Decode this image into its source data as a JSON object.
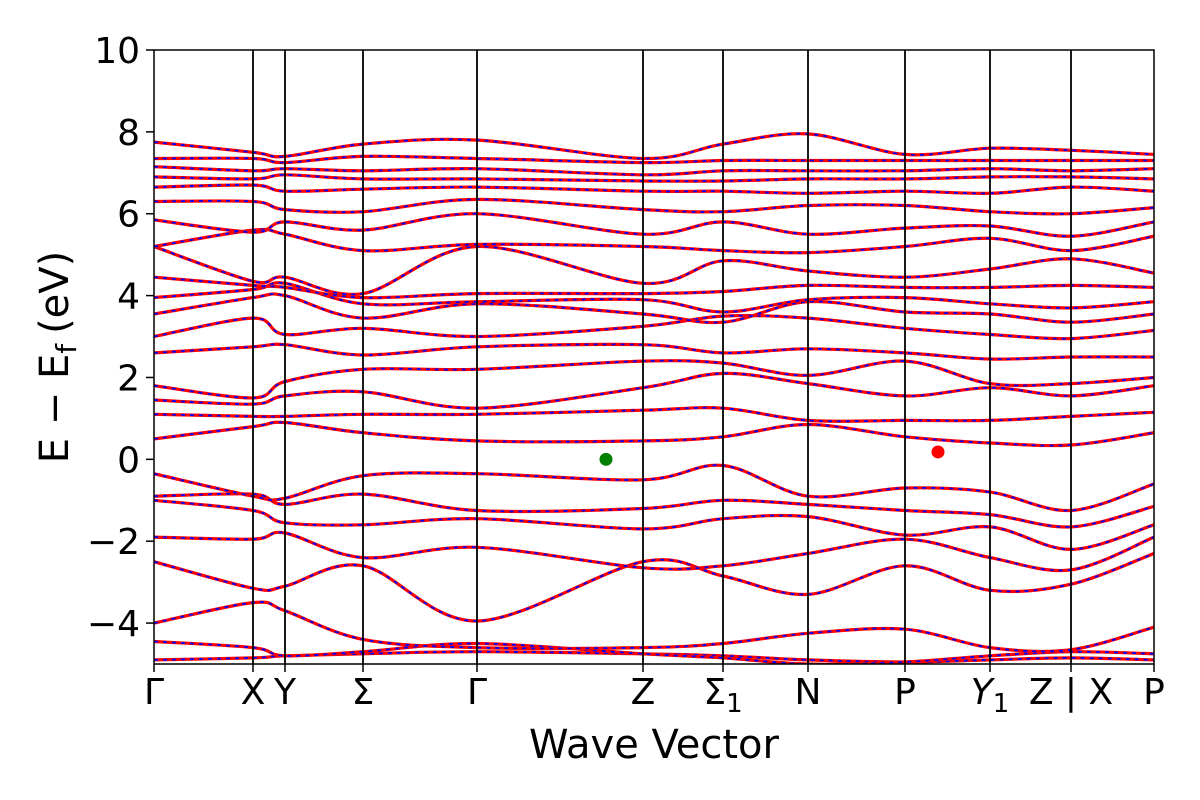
{
  "chart_data": {
    "type": "line",
    "title": "",
    "xlabel": "Wave Vector",
    "ylabel_parts": {
      "main": "E − E",
      "sub": "f",
      "unit": "(eV)"
    },
    "ylim": [
      -5,
      10
    ],
    "yticks": [
      -4,
      -2,
      0,
      2,
      4,
      6,
      8,
      10
    ],
    "ytick_labels": [
      "−4",
      "−2",
      "0",
      "2",
      "4",
      "6",
      "8",
      "10"
    ],
    "xlim": [
      0,
      1
    ],
    "high_symmetry_points": [
      {
        "label": "Γ",
        "x": 0.0
      },
      {
        "label": "X",
        "x": 0.099
      },
      {
        "label": "Y",
        "x": 0.131
      },
      {
        "label": "Σ",
        "x": 0.209
      },
      {
        "label": "Γ",
        "x": 0.323
      },
      {
        "label": "Z",
        "x": 0.489
      },
      {
        "label": "Σ",
        "sub": "1",
        "x": 0.569
      },
      {
        "label": "N",
        "x": 0.654
      },
      {
        "label": "P",
        "x": 0.751
      },
      {
        "label": "Y",
        "sub": "1",
        "x": 0.836,
        "italic": true
      },
      {
        "label": "Z | X",
        "x": 0.917,
        "boundary": true
      },
      {
        "label": "P",
        "x": 1.0
      }
    ],
    "series_styles": [
      {
        "color": "#ff0000",
        "style": "solid"
      },
      {
        "color": "#0000ff",
        "style": "dashed"
      }
    ],
    "grid": false,
    "markers": [
      {
        "x": 0.452,
        "y": 0.0,
        "color": "#008000"
      },
      {
        "x": 0.784,
        "y": 0.18,
        "color": "#ff0000"
      }
    ],
    "bands": [
      [
        -4.9,
        -4.85,
        -4.8,
        -4.75,
        -4.7,
        -4.75,
        -4.8,
        -4.9,
        -4.95,
        -4.9,
        -4.85,
        -4.9
      ],
      [
        -4.45,
        -4.6,
        -4.8,
        -4.7,
        -4.5,
        -4.75,
        -4.85,
        -5.0,
        -4.95,
        -4.8,
        -4.7,
        -4.75
      ],
      [
        -4.0,
        -3.5,
        -3.7,
        -4.4,
        -4.6,
        -4.6,
        -4.5,
        -4.25,
        -4.15,
        -4.6,
        -4.65,
        -4.1
      ],
      [
        -2.5,
        -3.15,
        -3.1,
        -2.6,
        -3.95,
        -2.5,
        -2.85,
        -3.3,
        -2.6,
        -3.2,
        -3.05,
        -2.3
      ],
      [
        -1.9,
        -1.95,
        -1.8,
        -2.4,
        -2.15,
        -2.65,
        -2.6,
        -2.3,
        -1.95,
        -2.4,
        -2.7,
        -1.9
      ],
      [
        -1.0,
        -1.25,
        -1.55,
        -1.6,
        -1.45,
        -1.7,
        -1.45,
        -1.4,
        -1.85,
        -1.65,
        -2.2,
        -1.6
      ],
      [
        -0.9,
        -0.85,
        -1.1,
        -0.85,
        -1.25,
        -1.2,
        -1.0,
        -1.1,
        -1.25,
        -1.35,
        -1.65,
        -1.15
      ],
      [
        -0.35,
        -0.9,
        -0.95,
        -0.4,
        -0.35,
        -0.5,
        -0.15,
        -0.9,
        -0.7,
        -0.8,
        -1.25,
        -0.6
      ],
      [
        0.5,
        0.8,
        0.9,
        0.65,
        0.45,
        0.45,
        0.55,
        0.85,
        0.55,
        0.4,
        0.35,
        0.65
      ],
      [
        1.1,
        1.05,
        1.05,
        1.1,
        1.1,
        1.2,
        1.25,
        0.95,
        0.95,
        0.95,
        1.05,
        1.15
      ],
      [
        1.45,
        1.35,
        1.55,
        1.65,
        1.25,
        1.75,
        2.1,
        1.85,
        1.55,
        1.75,
        1.55,
        1.8
      ],
      [
        1.8,
        1.5,
        1.9,
        2.2,
        2.2,
        2.4,
        2.35,
        2.05,
        2.4,
        1.85,
        1.85,
        2.0
      ],
      [
        2.6,
        2.75,
        2.8,
        2.55,
        2.75,
        2.8,
        2.6,
        2.7,
        2.6,
        2.45,
        2.5,
        2.5
      ],
      [
        3.0,
        3.45,
        3.05,
        3.2,
        3.0,
        3.25,
        3.5,
        3.45,
        3.2,
        3.05,
        2.95,
        3.15
      ],
      [
        3.55,
        3.95,
        4.0,
        3.45,
        3.8,
        3.55,
        3.35,
        3.85,
        3.6,
        3.55,
        3.35,
        3.55
      ],
      [
        3.95,
        4.15,
        4.3,
        3.8,
        3.85,
        3.9,
        3.6,
        3.9,
        3.95,
        3.8,
        3.7,
        3.85
      ],
      [
        4.45,
        4.25,
        4.2,
        3.95,
        4.05,
        4.05,
        4.1,
        4.25,
        4.2,
        4.2,
        4.25,
        4.2
      ],
      [
        5.2,
        4.35,
        4.45,
        4.05,
        5.2,
        4.3,
        4.85,
        4.6,
        4.45,
        4.65,
        4.9,
        4.55
      ],
      [
        5.2,
        5.6,
        5.5,
        5.1,
        5.25,
        5.2,
        5.1,
        5.05,
        5.2,
        5.4,
        5.1,
        5.45
      ],
      [
        5.85,
        5.55,
        5.8,
        5.6,
        6.0,
        5.5,
        5.8,
        5.5,
        5.65,
        5.7,
        5.45,
        5.8
      ],
      [
        6.3,
        6.3,
        6.1,
        6.05,
        6.35,
        6.1,
        6.05,
        6.2,
        6.2,
        6.05,
        6.0,
        6.15
      ],
      [
        6.65,
        6.7,
        6.55,
        6.6,
        6.65,
        6.55,
        6.55,
        6.5,
        6.55,
        6.5,
        6.65,
        6.55
      ],
      [
        6.9,
        6.85,
        6.95,
        6.85,
        6.85,
        6.8,
        6.8,
        6.85,
        6.85,
        6.9,
        6.9,
        6.85
      ],
      [
        7.15,
        7.05,
        7.1,
        7.05,
        7.1,
        6.95,
        7.05,
        7.05,
        7.05,
        7.1,
        7.05,
        7.1
      ],
      [
        7.35,
        7.35,
        7.25,
        7.4,
        7.35,
        7.25,
        7.3,
        7.3,
        7.3,
        7.3,
        7.3,
        7.3
      ],
      [
        7.75,
        7.5,
        7.4,
        7.7,
        7.8,
        7.35,
        7.7,
        7.95,
        7.45,
        7.6,
        7.55,
        7.45
      ]
    ]
  }
}
